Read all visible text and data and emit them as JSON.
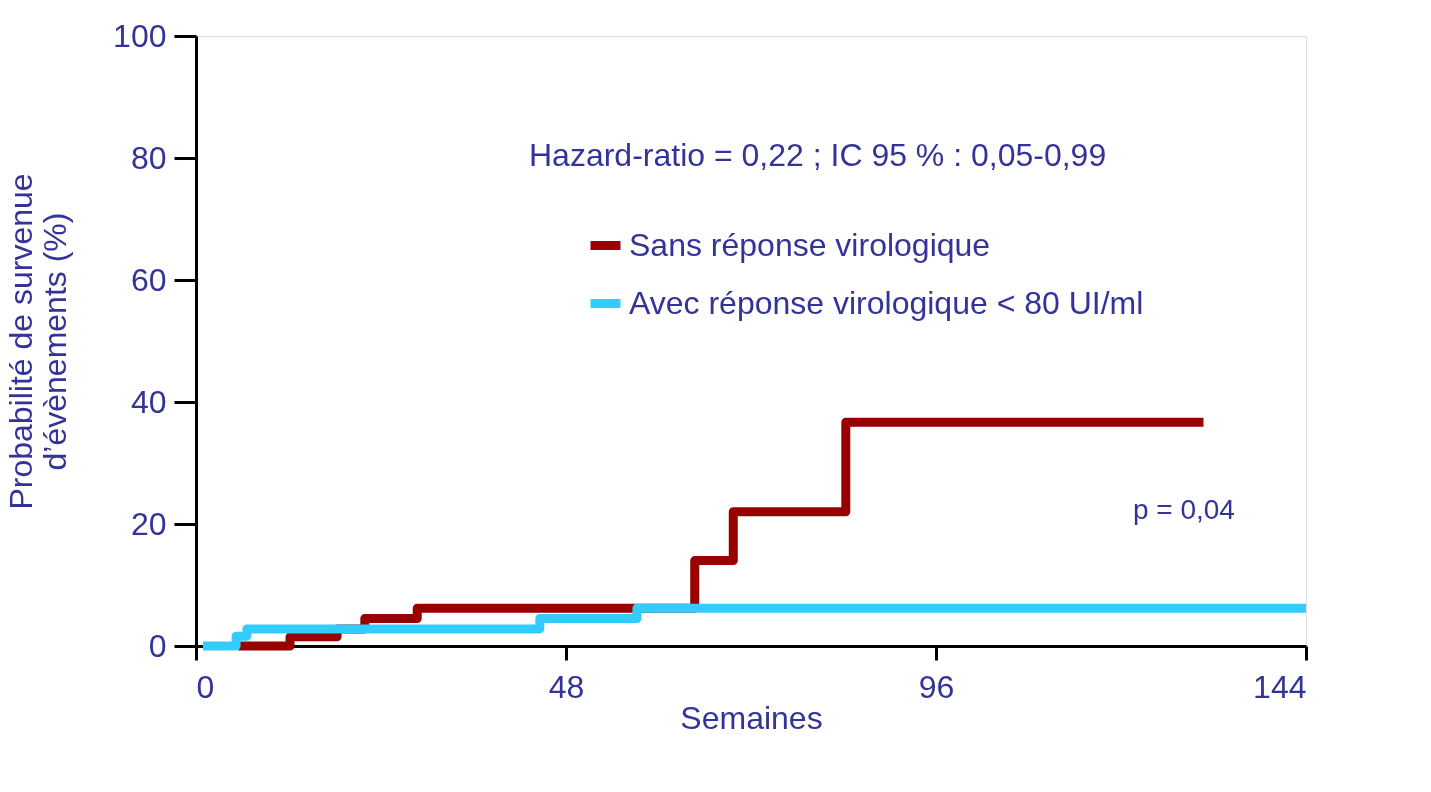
{
  "chart_data": {
    "type": "step",
    "xlabel": "Semaines",
    "ylabel": "Probabilité de survenue\nd’évènements (%)",
    "xlim": [
      0,
      144
    ],
    "xticks": [
      0,
      48,
      96,
      144
    ],
    "ylim": [
      0,
      100
    ],
    "yticks": [
      0,
      20,
      40,
      60,
      80,
      100
    ],
    "grid": false,
    "legend": "top right",
    "line_style": "solid",
    "marker": "none",
    "annotations": [
      "Hazard-ratio = 0,22 ; IC 95 % : 0,05-0,99",
      "p = 0,04"
    ],
    "series": [
      {
        "name": "Sans réponse virologique",
        "color": "#990000",
        "x": [
          5.5,
          12.2,
          18.3,
          21.9,
          28.7,
          64.7,
          69.7,
          84.3,
          130.7
        ],
        "values": [
          0,
          1.5,
          2.8,
          4.5,
          6.2,
          14,
          22,
          36.7,
          36.7
        ]
      },
      {
        "name": "Avec réponse virologique < 80 UI/ml",
        "color": "#33ccff",
        "x": [
          0.9,
          5.2,
          6.6,
          44.6,
          57.2,
          144
        ],
        "values": [
          0,
          1.6,
          2.8,
          4.5,
          6.2,
          6.2
        ]
      }
    ]
  }
}
